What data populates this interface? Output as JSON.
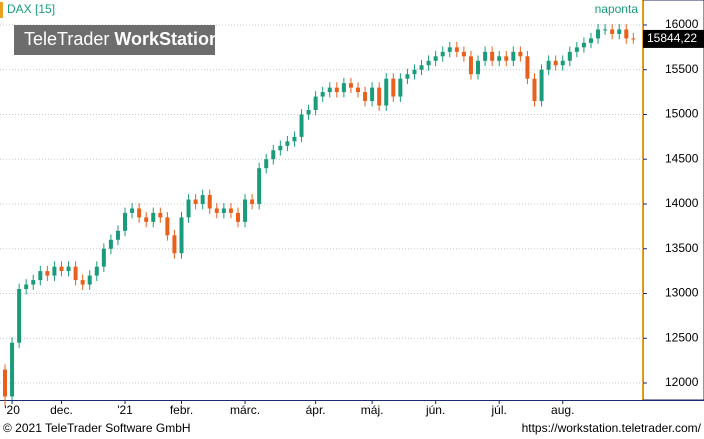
{
  "chart_data": {
    "type": "candlestick",
    "symbol": "DAX [15]",
    "period": "naponta",
    "brand": "TeleTrader",
    "brand_bold": "WorkStation",
    "last_price_label": "15844,22",
    "footer_left": "© 2021 TeleTrader Software GmbH",
    "footer_right": "https://workstation.teletrader.com/",
    "up_color": "#1a9c7c",
    "down_color": "#e8601c",
    "grid": true,
    "ylim": [
      11810,
      16279
    ],
    "yticks": [
      12000,
      12500,
      13000,
      13500,
      14000,
      14500,
      15000,
      15500,
      16000
    ],
    "categories": [
      null,
      "'20",
      null,
      null,
      null,
      null,
      null,
      null,
      "dec.",
      null,
      null,
      null,
      null,
      null,
      null,
      null,
      null,
      "'21",
      null,
      null,
      null,
      null,
      null,
      null,
      null,
      "febr.",
      null,
      null,
      null,
      null,
      null,
      null,
      null,
      null,
      "márc.",
      null,
      null,
      null,
      null,
      null,
      null,
      null,
      null,
      null,
      "ápr.",
      null,
      null,
      null,
      null,
      null,
      null,
      null,
      "máj.",
      null,
      null,
      null,
      null,
      null,
      null,
      null,
      null,
      "jún.",
      null,
      null,
      null,
      null,
      null,
      null,
      null,
      null,
      "júl.",
      null,
      null,
      null,
      null,
      null,
      null,
      null,
      null,
      "aug.",
      null,
      null,
      null,
      null,
      null,
      null,
      null,
      null,
      null,
      null
    ],
    "open": [
      12150,
      11850,
      12450,
      13050,
      13100,
      13150,
      13250,
      13200,
      13300,
      13250,
      13300,
      13150,
      13100,
      13200,
      13300,
      13500,
      13600,
      13700,
      13900,
      13950,
      13850,
      13800,
      13900,
      13850,
      13650,
      13450,
      13850,
      14050,
      14000,
      14100,
      13950,
      13900,
      13950,
      13900,
      13800,
      14050,
      14000,
      14400,
      14500,
      14600,
      14650,
      14700,
      14750,
      15000,
      15050,
      15200,
      15250,
      15300,
      15250,
      15350,
      15300,
      15250,
      15150,
      15300,
      15100,
      15400,
      15200,
      15400,
      15450,
      15500,
      15550,
      15600,
      15650,
      15700,
      15750,
      15700,
      15650,
      15450,
      15600,
      15700,
      15600,
      15650,
      15600,
      15700,
      15650,
      15400,
      15150,
      15500,
      15600,
      15550,
      15600,
      15700,
      15750,
      15800,
      15850,
      15950,
      15950,
      15900,
      15950,
      15850
    ],
    "high": [
      12210,
      12510,
      13110,
      13160,
      13210,
      13310,
      13310,
      13360,
      13360,
      13360,
      13360,
      13210,
      13260,
      13360,
      13560,
      13660,
      13760,
      13960,
      14010,
      14010,
      13910,
      13960,
      13960,
      13910,
      13710,
      13910,
      14110,
      14110,
      14160,
      14160,
      14010,
      14010,
      14010,
      13960,
      14110,
      14110,
      14460,
      14560,
      14660,
      14710,
      14760,
      14810,
      15060,
      15110,
      15260,
      15310,
      15360,
      15360,
      15410,
      15410,
      15360,
      15310,
      15360,
      15360,
      15460,
      15460,
      15460,
      15510,
      15560,
      15610,
      15660,
      15710,
      15760,
      15810,
      15810,
      15760,
      15710,
      15660,
      15760,
      15760,
      15710,
      15710,
      15760,
      15760,
      15710,
      15460,
      15560,
      15660,
      15660,
      15660,
      15760,
      15810,
      15860,
      15910,
      16010,
      16010,
      16010,
      16010,
      16010,
      15910
    ],
    "low": [
      11750,
      11790,
      12390,
      12990,
      13040,
      13090,
      13140,
      13140,
      13190,
      13190,
      13090,
      13040,
      13040,
      13140,
      13240,
      13440,
      13540,
      13640,
      13840,
      13790,
      13740,
      13740,
      13790,
      13590,
      13390,
      13390,
      13790,
      13940,
      13940,
      13890,
      13840,
      13840,
      13840,
      13740,
      13740,
      13940,
      13940,
      14340,
      14440,
      14540,
      14590,
      14640,
      14690,
      14940,
      14990,
      15140,
      15190,
      15190,
      15190,
      15240,
      15190,
      15090,
      15090,
      15040,
      15040,
      15140,
      15140,
      15340,
      15390,
      15440,
      15490,
      15540,
      15590,
      15640,
      15640,
      15590,
      15390,
      15390,
      15540,
      15540,
      15540,
      15540,
      15540,
      15590,
      15340,
      15090,
      15090,
      15440,
      15490,
      15490,
      15540,
      15640,
      15690,
      15740,
      15790,
      15890,
      15840,
      15840,
      15790,
      15790
    ],
    "close": [
      11850,
      12450,
      13050,
      13100,
      13150,
      13250,
      13200,
      13300,
      13250,
      13300,
      13150,
      13100,
      13200,
      13300,
      13500,
      13600,
      13700,
      13900,
      13950,
      13850,
      13800,
      13900,
      13850,
      13650,
      13450,
      13850,
      14050,
      14000,
      14100,
      13950,
      13900,
      13950,
      13900,
      13800,
      14050,
      14000,
      14400,
      14500,
      14600,
      14650,
      14700,
      14750,
      15000,
      15050,
      15200,
      15250,
      15300,
      15250,
      15350,
      15300,
      15250,
      15150,
      15300,
      15100,
      15400,
      15200,
      15400,
      15450,
      15500,
      15550,
      15600,
      15650,
      15700,
      15750,
      15700,
      15650,
      15450,
      15600,
      15700,
      15600,
      15650,
      15600,
      15700,
      15650,
      15400,
      15150,
      15500,
      15600,
      15550,
      15600,
      15700,
      15750,
      15800,
      15850,
      15950,
      15950,
      15900,
      15950,
      15850,
      15844.22
    ]
  }
}
